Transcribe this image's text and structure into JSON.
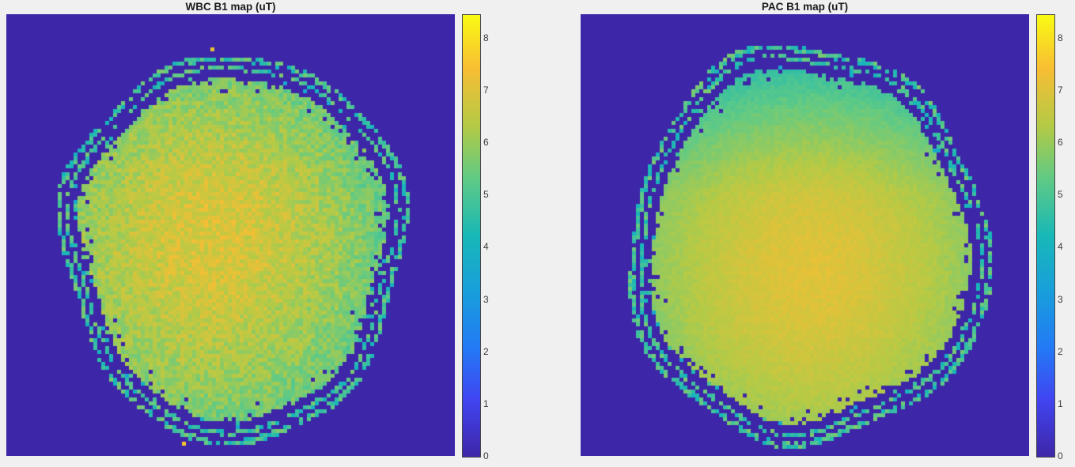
{
  "figure": {
    "background_color": "#f0f0f0",
    "image_background_color": "#3e26a8",
    "colormap": "parula"
  },
  "chart_data": [
    {
      "type": "heatmap",
      "title": "WBC B1 map (uT)",
      "units": "uT",
      "colormap": "parula",
      "clim": [
        0,
        8.45
      ],
      "colorbar_ticks": [
        0,
        1,
        2,
        3,
        4,
        5,
        6,
        7,
        8
      ],
      "legend_position": "right-colorbar",
      "regions": {
        "background_value": 0,
        "scalp_ring_value": 4.8,
        "cortex_edge_value": 5.4,
        "brain_mean_value": 6.0,
        "center_peak_value": 6.9
      },
      "render": {
        "seed": 7,
        "rx": 0.38,
        "ry": 0.44,
        "peak": 6.95,
        "falloff": 1.55,
        "peak_offset": [
          -0.12,
          -0.05
        ],
        "noise": 0.5,
        "frontal_dip": 0.25,
        "stray_dots": [
          {
            "x": 0.392,
            "y": 0.968,
            "v": 7.6
          },
          {
            "x": 0.455,
            "y": 0.075,
            "v": 7.2
          }
        ]
      }
    },
    {
      "type": "heatmap",
      "title": "PAC B1 map (uT)",
      "units": "uT",
      "colormap": "parula",
      "clim": [
        0,
        8.45
      ],
      "colorbar_ticks": [
        0,
        1,
        2,
        3,
        4,
        5,
        6,
        7,
        8
      ],
      "legend_position": "right-colorbar",
      "regions": {
        "background_value": 0,
        "scalp_ring_value": 5.0,
        "frontal_value": 5.4,
        "brain_mean_value": 6.1,
        "center_peak_value": 7.0
      },
      "render": {
        "seed": 42,
        "rx": 0.4,
        "ry": 0.45,
        "peak": 7.05,
        "falloff": 1.45,
        "peak_offset": [
          0.02,
          0.12
        ],
        "noise": 0.16,
        "frontal_dip": 1.0,
        "stray_dots": []
      }
    }
  ]
}
